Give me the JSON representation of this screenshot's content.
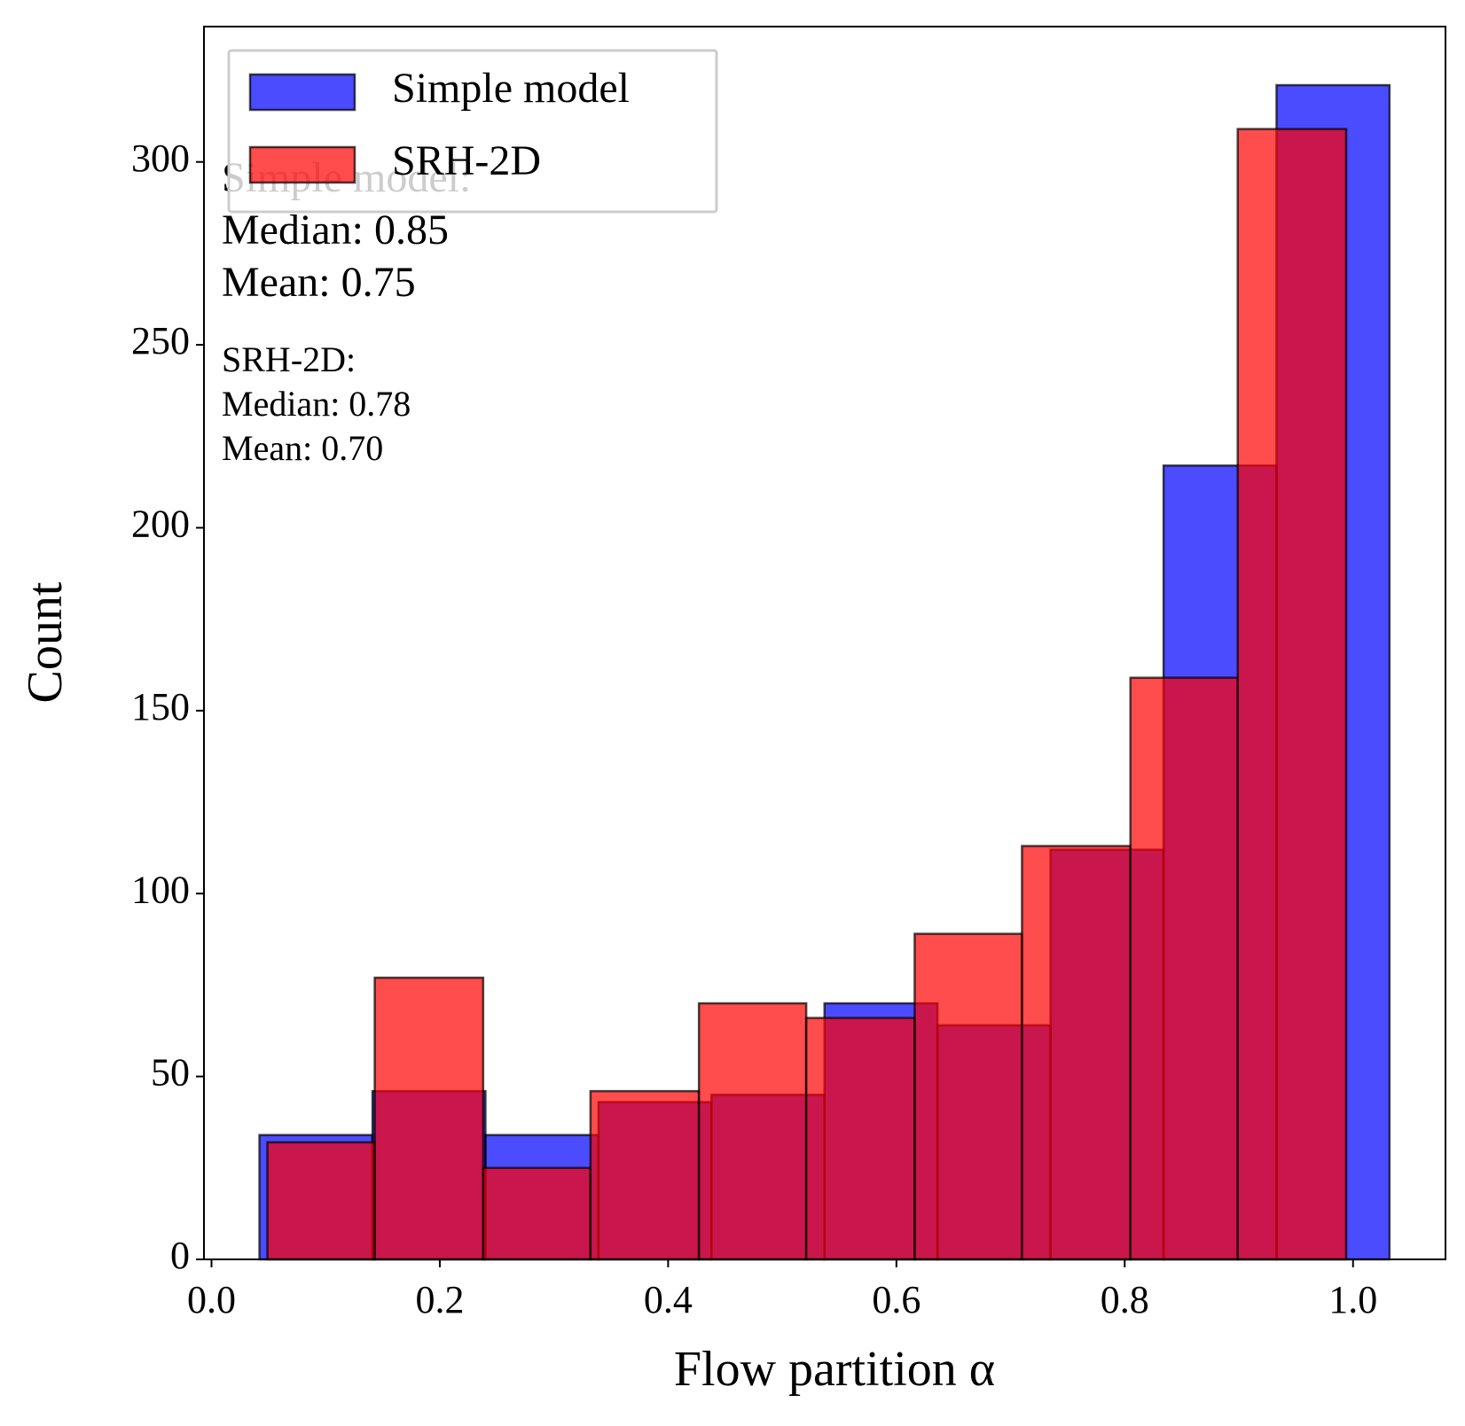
{
  "chart_data": {
    "type": "histogram",
    "xlabel": "Flow partition α",
    "ylabel": "Count",
    "xlim": [
      -0.0066,
      1.081
    ],
    "ylim": [
      0,
      337
    ],
    "xticks": [
      {
        "value": 0,
        "label": "0.0"
      },
      0.2,
      0.4,
      0.6,
      0.8,
      {
        "value": 1,
        "label": "1.0"
      }
    ],
    "yticks": [
      0,
      50,
      100,
      150,
      200,
      250,
      300
    ],
    "legend": "upper left",
    "series": [
      {
        "name": "Simple model",
        "color": "#0000ff",
        "bins": [
          0.042,
          0.141,
          0.24,
          0.339,
          0.438,
          0.537,
          0.636,
          0.735,
          0.834,
          0.933,
          1.032
        ],
        "values": [
          34,
          46,
          34,
          43,
          45,
          70,
          64,
          112,
          217,
          321
        ]
      },
      {
        "name": "SRH-2D",
        "color": "#ff0000",
        "bins": [
          0.049,
          0.143,
          0.238,
          0.332,
          0.427,
          0.521,
          0.616,
          0.71,
          0.805,
          0.899,
          0.994
        ],
        "values": [
          32,
          77,
          25,
          46,
          70,
          66,
          89,
          113,
          159,
          309
        ]
      }
    ],
    "annotations": [
      {
        "lines": [
          "Simple model:",
          "Median: 0.85",
          "Mean: 0.75"
        ]
      },
      {
        "lines": [
          "SRH-2D:",
          "Median: 0.78",
          "Mean: 0.70"
        ]
      }
    ]
  }
}
